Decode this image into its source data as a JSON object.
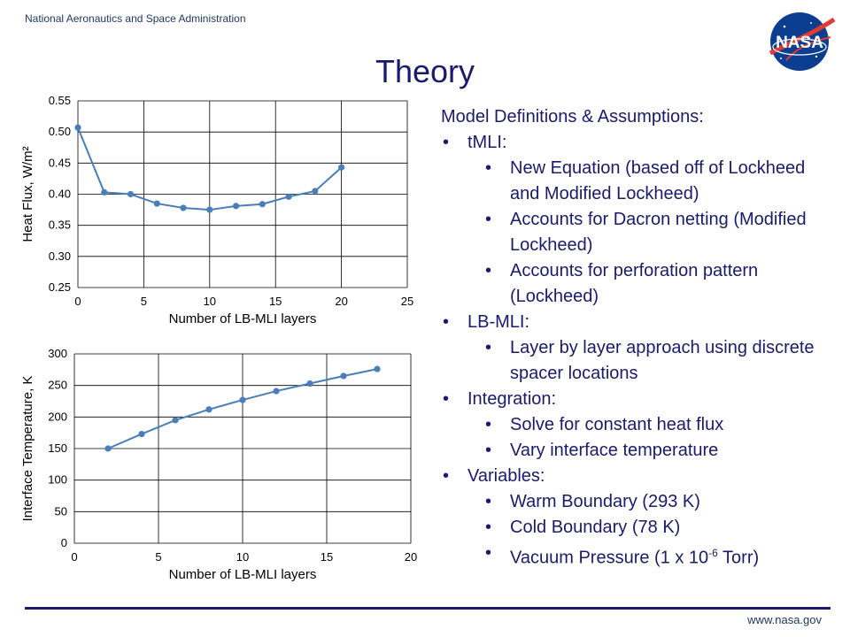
{
  "header": {
    "agency": "National Aeronautics and Space Administration",
    "logo_text": "NASA"
  },
  "slide": {
    "title": "Theory"
  },
  "notes": {
    "heading": "Model Definitions & Assumptions:",
    "sections": [
      {
        "label": "tMLI:",
        "items": [
          "New Equation (based off of Lockheed and Modified Lockheed)",
          "Accounts for Dacron netting (Modified Lockheed)",
          "Accounts for perforation pattern (Lockheed)"
        ]
      },
      {
        "label": "LB-MLI:",
        "items": [
          "Layer by layer approach using discrete spacer locations"
        ]
      },
      {
        "label": "Integration:",
        "items": [
          "Solve for constant heat flux",
          "Vary interface temperature"
        ]
      },
      {
        "label": "Variables:",
        "items": [
          "Warm Boundary (293 K)",
          "Cold Boundary (78 K)"
        ]
      }
    ],
    "vacuum": {
      "prefix": "Vacuum Pressure (1 x 10",
      "exponent": "-6",
      "suffix": " Torr)"
    }
  },
  "footer": {
    "url": "www.nasa.gov"
  },
  "colors": {
    "series": "#4a7ebb",
    "navy": "#1a1a6e",
    "grid": "#000000"
  },
  "chart_data": [
    {
      "type": "line",
      "xlabel": "Number of LB-MLI layers",
      "ylabel": "Heat Flux, W/m²",
      "xlim": [
        0,
        25
      ],
      "ylim": [
        0.25,
        0.55
      ],
      "xticks": [
        0,
        5,
        10,
        15,
        20,
        25
      ],
      "xtick_labels": [
        "0",
        "5",
        "10",
        "15",
        "20",
        "25"
      ],
      "yticks": [
        0.25,
        0.3,
        0.35,
        0.4,
        0.45,
        0.5,
        0.55
      ],
      "ytick_labels": [
        "0.25",
        "0.30",
        "0.35",
        "0.40",
        "0.45",
        "0.50",
        "0.55"
      ],
      "grid": true,
      "x": [
        0,
        2,
        4,
        6,
        8,
        10,
        12,
        14,
        16,
        18,
        20
      ],
      "y": [
        0.507,
        0.403,
        0.4,
        0.385,
        0.378,
        0.375,
        0.381,
        0.384,
        0.396,
        0.405,
        0.443
      ]
    },
    {
      "type": "line",
      "xlabel": "Number of LB-MLI layers",
      "ylabel": "Interface Temperature, K",
      "xlim": [
        0,
        20
      ],
      "ylim": [
        0,
        300
      ],
      "xticks": [
        0,
        5,
        10,
        15,
        20
      ],
      "xtick_labels": [
        "0",
        "5",
        "10",
        "15",
        "20"
      ],
      "yticks": [
        0,
        50,
        100,
        150,
        200,
        250,
        300
      ],
      "ytick_labels": [
        "0",
        "50",
        "100",
        "150",
        "200",
        "250",
        "300"
      ],
      "grid": true,
      "x": [
        2,
        4,
        6,
        8,
        10,
        12,
        14,
        16,
        18
      ],
      "y": [
        150,
        173,
        195,
        212,
        227,
        241,
        253,
        265,
        276
      ]
    }
  ]
}
